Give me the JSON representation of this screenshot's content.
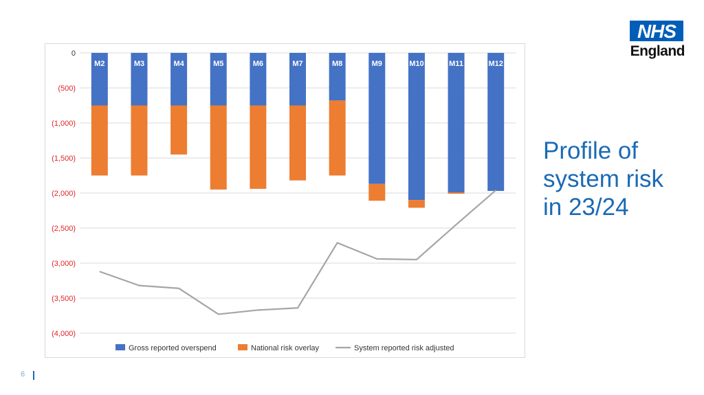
{
  "slide": {
    "title": "Profile of\nsystem risk\nin 23/24",
    "page_number": "6",
    "logo": {
      "mark": "NHS",
      "region": "England"
    }
  },
  "colors": {
    "gross": "#4472c4",
    "overlay": "#ed7d31",
    "line": "#a5a5a5",
    "grid": "#d9d9d9",
    "negative_tick": "#e02424",
    "title": "#1b6ab5"
  },
  "chart_data": {
    "type": "bar",
    "stacked": true,
    "categories": [
      "M2",
      "M3",
      "M4",
      "M5",
      "M6",
      "M7",
      "M8",
      "M9",
      "M10",
      "M11",
      "M12"
    ],
    "series": [
      {
        "name": "Gross reported overspend",
        "type": "bar",
        "values": [
          -750,
          -750,
          -750,
          -750,
          -750,
          -750,
          -680,
          -1870,
          -2100,
          -1990,
          -1970
        ]
      },
      {
        "name": "National risk overlay",
        "type": "bar",
        "values": [
          -1000,
          -1000,
          -700,
          -1200,
          -1190,
          -1070,
          -1070,
          -240,
          -110,
          -20,
          0
        ]
      },
      {
        "name": "System reported risk adjusted",
        "type": "line",
        "values": [
          -3120,
          -3320,
          -3360,
          -3730,
          -3670,
          -3640,
          -2710,
          -2940,
          -2950,
          -2450,
          -1960
        ]
      }
    ],
    "yticks": [
      "0",
      "(500)",
      "(1,000)",
      "(1,500)",
      "(2,000)",
      "(2,500)",
      "(3,000)",
      "(3,500)",
      "(4,000)"
    ],
    "ylim": [
      -4000,
      0
    ],
    "xaxis_position": "top",
    "category_labels_inside_bars": true,
    "grid": true,
    "legend": "bottom"
  }
}
